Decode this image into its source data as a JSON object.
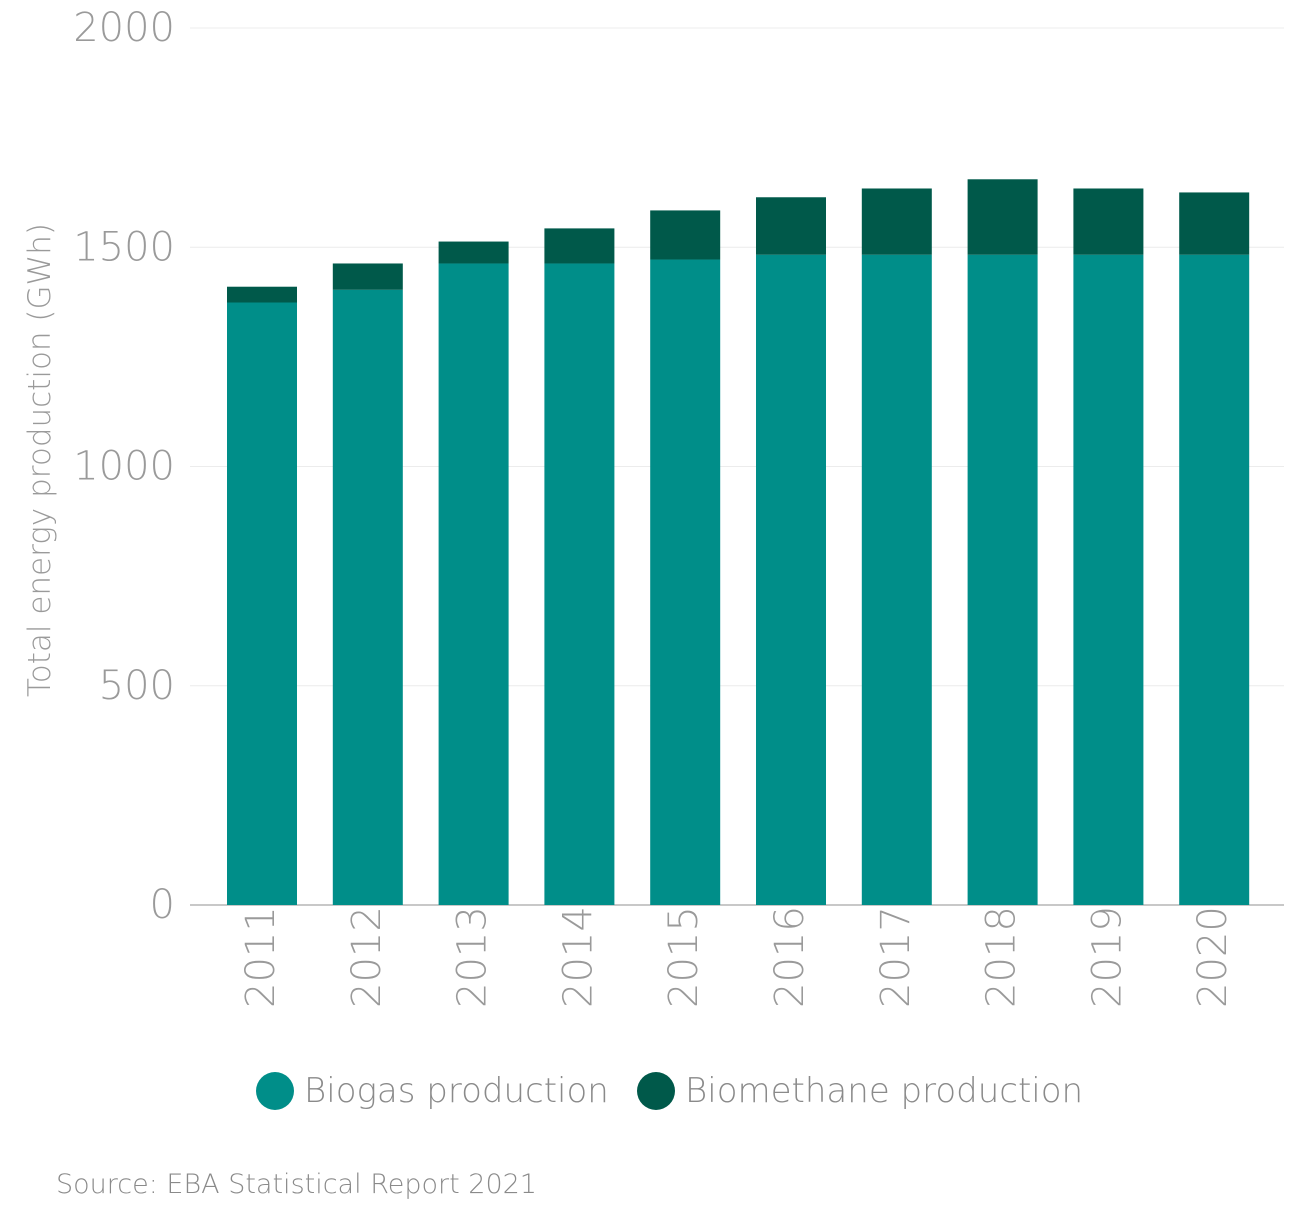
{
  "chart_data": {
    "type": "bar",
    "stacked": true,
    "title": "",
    "xlabel": "",
    "ylabel": "Total energy production (GWh)",
    "ylim": [
      0,
      2000
    ],
    "yticks": [
      "0",
      "500",
      "1000",
      "1500",
      "2000"
    ],
    "ytick_values": [
      0,
      500,
      1000,
      1500,
      2000
    ],
    "grid": true,
    "legend_position": "bottom",
    "categories": [
      "2011",
      "2012",
      "2013",
      "2014",
      "2015",
      "2016",
      "2017",
      "2018",
      "2019",
      "2020"
    ],
    "series": [
      {
        "name": "Biogas production",
        "color": "#008e89",
        "values": [
          1374,
          1403,
          1463,
          1463,
          1472,
          1483,
          1483,
          1483,
          1483,
          1483
        ]
      },
      {
        "name": "Biomethane production",
        "color": "#00594a",
        "values": [
          36,
          60,
          50,
          80,
          112,
          131,
          151,
          172,
          151,
          142
        ]
      }
    ]
  },
  "source": "Source: EBA Statistical Report 2021"
}
